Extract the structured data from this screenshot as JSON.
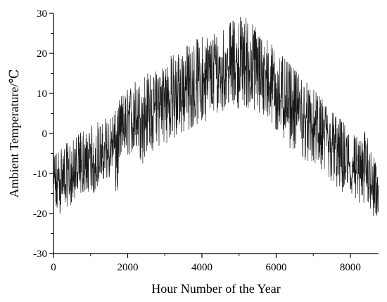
{
  "chart_data": {
    "type": "line",
    "xlabel": "Hour Number of the Year",
    "ylabel": "Ambient Temperature/℃",
    "xlim": [
      0,
      8760
    ],
    "ylim": [
      -30,
      30
    ],
    "x_ticks": [
      0,
      2000,
      4000,
      6000,
      8000
    ],
    "y_ticks": [
      -30,
      -20,
      -10,
      0,
      10,
      20,
      30
    ],
    "x_tick_labels": [
      "0",
      "2000",
      "4000",
      "6000",
      "8000"
    ],
    "y_tick_labels": [
      "-30",
      "-20",
      "-10",
      "0",
      "10",
      "20",
      "30"
    ],
    "grid": false,
    "legend": "none",
    "line_color": "#1a1a1a",
    "series": [
      {
        "x": [
          0,
          100,
          200,
          300,
          400,
          500,
          600,
          700,
          800,
          900,
          1000,
          1100,
          1200,
          1300,
          1400,
          1500,
          1600,
          1700,
          1800,
          1900,
          2000,
          2100,
          2200,
          2300,
          2400,
          2500,
          2600,
          2700,
          2800,
          2900,
          3000,
          3100,
          3200,
          3300,
          3400,
          3500,
          3600,
          3700,
          3800,
          3900,
          4000,
          4100,
          4200,
          4300,
          4400,
          4500,
          4600,
          4700,
          4800,
          4900,
          5000,
          5100,
          5200,
          5300,
          5400,
          5500,
          5600,
          5700,
          5800,
          5900,
          6000,
          6100,
          6200,
          6300,
          6400,
          6500,
          6600,
          6700,
          6800,
          6900,
          7000,
          7100,
          7200,
          7300,
          7400,
          7500,
          7600,
          7700,
          7800,
          7900,
          8000,
          8100,
          8200,
          8300,
          8400,
          8500,
          8600,
          8700,
          8760
        ],
        "y": [
          -12,
          -14,
          -11,
          -13,
          -10,
          -12,
          -9,
          -11,
          -8,
          -10,
          -7,
          -9,
          -6,
          -8,
          -5,
          -6,
          -3,
          -4,
          0,
          1,
          2,
          3,
          4,
          3,
          5,
          5,
          6,
          4,
          7,
          7,
          8,
          8,
          9,
          9,
          10,
          10,
          11,
          11,
          12,
          12,
          13,
          13,
          13,
          14,
          14,
          15,
          15,
          16,
          16,
          17,
          17,
          17,
          16,
          16,
          15,
          15,
          14,
          13,
          12,
          11,
          10,
          9,
          8,
          7,
          6,
          6,
          5,
          4,
          3,
          2,
          1,
          0,
          -1,
          -2,
          -3,
          -4,
          -5,
          -6,
          -7,
          -8,
          -9,
          -10,
          -11,
          -12,
          -9,
          -8,
          -12,
          -16,
          -18
        ],
        "min": [
          -22,
          -21,
          -20,
          -19,
          -18,
          -18,
          -17,
          -16,
          -15,
          -15,
          -14,
          -16,
          -13,
          -12,
          -11,
          -12,
          -10,
          -19,
          -8,
          -7,
          -6,
          -5,
          -6,
          -7,
          -8,
          -5,
          -4,
          -5,
          -4,
          -3,
          -3,
          -2,
          -2,
          -3,
          -1,
          0,
          0,
          1,
          2,
          2,
          2,
          3,
          4,
          5,
          5,
          5,
          6,
          6,
          7,
          7,
          6,
          7,
          6,
          6,
          5,
          4,
          4,
          3,
          2,
          1,
          0,
          -1,
          -2,
          -3,
          -4,
          -5,
          -5,
          -6,
          -7,
          -8,
          -8,
          -9,
          -10,
          -11,
          -12,
          -13,
          -14,
          -15,
          -16,
          -17,
          -17,
          -18,
          -19,
          -19,
          -18,
          -18,
          -21,
          -24,
          -25
        ],
        "max": [
          -5,
          -4,
          -3,
          -3,
          -2,
          -2,
          -1,
          0,
          1,
          0,
          2,
          2,
          3,
          2,
          4,
          4,
          5,
          6,
          9,
          10,
          11,
          12,
          13,
          12,
          14,
          15,
          15,
          14,
          17,
          17,
          18,
          18,
          20,
          19,
          21,
          21,
          22,
          22,
          23,
          24,
          24,
          25,
          24,
          25,
          26,
          26,
          27,
          27,
          28,
          28,
          29,
          30,
          29,
          28,
          27,
          26,
          25,
          24,
          23,
          22,
          21,
          20,
          19,
          18,
          17,
          16,
          15,
          14,
          13,
          12,
          11,
          10,
          9,
          8,
          7,
          6,
          5,
          4,
          3,
          2,
          1,
          0,
          -1,
          -2,
          1,
          0,
          -5,
          -8,
          -10
        ]
      }
    ]
  }
}
